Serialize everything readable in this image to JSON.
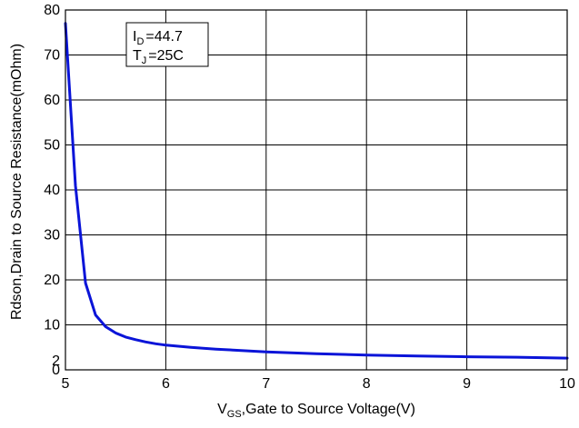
{
  "chart_data": {
    "type": "line",
    "title": "",
    "xlabel": {
      "symbol": "V",
      "subscript": "GS",
      "rest": ",Gate to Source Voltage(V)"
    },
    "ylabel": "Rdson,Drain to Source Resistance(mOhm)",
    "xlim": [
      5,
      10
    ],
    "ylim": [
      0,
      80
    ],
    "xticks": [
      5,
      6,
      7,
      8,
      9,
      10
    ],
    "yticks": [
      0,
      2,
      10,
      20,
      30,
      40,
      50,
      60,
      70,
      80
    ],
    "grid": true,
    "legend_position": "top-left",
    "annotation": {
      "line1": {
        "symbol": "I",
        "subscript": "D",
        "rest": "=44.7"
      },
      "line2": {
        "symbol": "T",
        "subscript": "J",
        "rest": "=25C"
      }
    },
    "series": [
      {
        "color": "#0a14d8",
        "x": [
          5.0,
          5.1,
          5.2,
          5.3,
          5.4,
          5.5,
          5.6,
          5.7,
          5.8,
          5.9,
          6.0,
          6.25,
          6.5,
          7.0,
          7.5,
          8.0,
          8.5,
          9.0,
          9.5,
          10.0
        ],
        "y": [
          77.0,
          41.0,
          19.3,
          12.2,
          9.6,
          8.2,
          7.3,
          6.7,
          6.2,
          5.8,
          5.5,
          5.0,
          4.6,
          4.0,
          3.6,
          3.3,
          3.1,
          2.9,
          2.8,
          2.6
        ]
      }
    ]
  }
}
